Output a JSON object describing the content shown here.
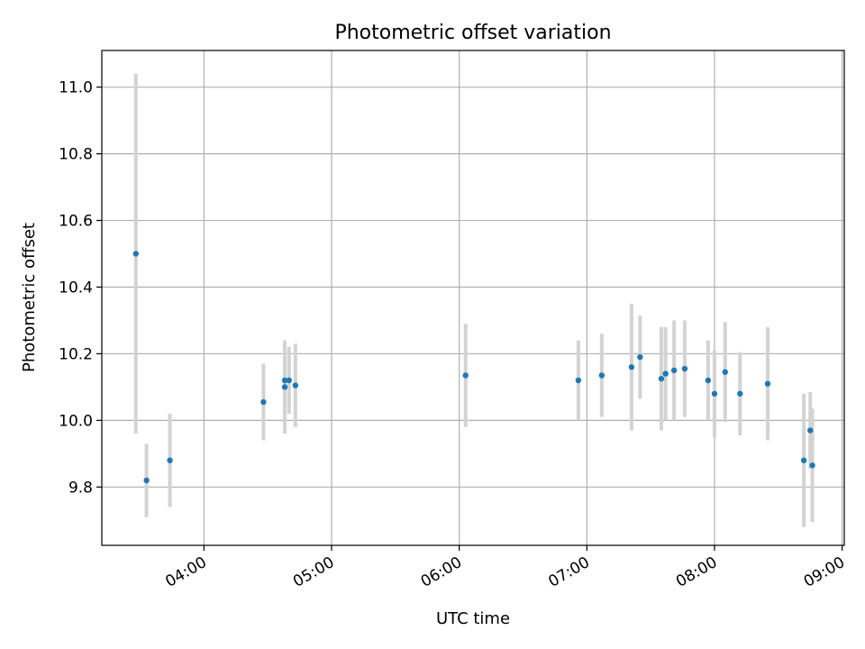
{
  "chart_data": {
    "type": "scatter",
    "title": "Photometric offset variation",
    "xlabel": "UTC time",
    "ylabel": "Photometric offset",
    "x_axis_type": "time",
    "xlim": [
      "03:12",
      "09:01"
    ],
    "ylim": [
      9.625,
      11.11
    ],
    "x_ticks": [
      "04:00",
      "05:00",
      "06:00",
      "07:00",
      "08:00",
      "09:00"
    ],
    "y_ticks": [
      9.8,
      10.0,
      10.2,
      10.4,
      10.6,
      10.8,
      11.0
    ],
    "grid": true,
    "legend": "none",
    "marker_color": "#1f77b4",
    "errorbar_color": "#d3d3d3",
    "series": [
      {
        "points": [
          {
            "x": "03:28",
            "y": 10.5,
            "yerr": 0.54
          },
          {
            "x": "03:33",
            "y": 9.82,
            "yerr": 0.11
          },
          {
            "x": "03:44",
            "y": 9.88,
            "yerr": 0.14
          },
          {
            "x": "04:28",
            "y": 10.055,
            "yerr": 0.115
          },
          {
            "x": "04:38",
            "y": 10.12,
            "yerr": 0.12
          },
          {
            "x": "04:38",
            "y": 10.1,
            "yerr": 0.14
          },
          {
            "x": "04:40",
            "y": 10.12,
            "yerr": 0.1
          },
          {
            "x": "04:43",
            "y": 10.105,
            "yerr": 0.125
          },
          {
            "x": "06:03",
            "y": 10.135,
            "yerr": 0.155
          },
          {
            "x": "06:56",
            "y": 10.12,
            "yerr": 0.12
          },
          {
            "x": "07:07",
            "y": 10.135,
            "yerr": 0.125
          },
          {
            "x": "07:21",
            "y": 10.16,
            "yerr": 0.19
          },
          {
            "x": "07:25",
            "y": 10.19,
            "yerr": 0.125
          },
          {
            "x": "07:35",
            "y": 10.125,
            "yerr": 0.155
          },
          {
            "x": "07:37",
            "y": 10.14,
            "yerr": 0.14
          },
          {
            "x": "07:41",
            "y": 10.15,
            "yerr": 0.15
          },
          {
            "x": "07:46",
            "y": 10.155,
            "yerr": 0.145
          },
          {
            "x": "07:57",
            "y": 10.12,
            "yerr": 0.12
          },
          {
            "x": "08:00",
            "y": 10.08,
            "yerr": 0.13
          },
          {
            "x": "08:05",
            "y": 10.145,
            "yerr": 0.15
          },
          {
            "x": "08:12",
            "y": 10.08,
            "yerr": 0.125
          },
          {
            "x": "08:25",
            "y": 10.11,
            "yerr": 0.17
          },
          {
            "x": "08:42",
            "y": 9.88,
            "yerr": 0.2
          },
          {
            "x": "08:45",
            "y": 9.97,
            "yerr": 0.115
          },
          {
            "x": "08:46",
            "y": 9.865,
            "yerr": 0.17
          }
        ]
      }
    ]
  }
}
